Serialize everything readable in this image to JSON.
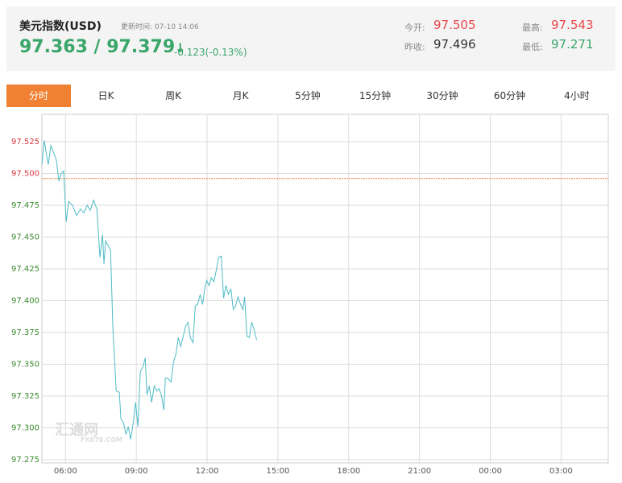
{
  "header": {
    "title": "美元指数(USD)",
    "update_time": "更新时间: 07-10 14:06",
    "price": "97.363 / 97.379",
    "arrow": "↓",
    "change": "-0.123(-0.13%)",
    "quotes": [
      {
        "label": "今开:",
        "value": "97.505",
        "color": "#e8474b"
      },
      {
        "label": "最高:",
        "value": "97.543",
        "color": "#e8474b"
      },
      {
        "label": "昨收:",
        "value": "97.496",
        "color": "#333333"
      },
      {
        "label": "最低:",
        "value": "97.271",
        "color": "#3aa66a"
      }
    ]
  },
  "tabs": [
    "分时",
    "日K",
    "周K",
    "月K",
    "5分钟",
    "15分钟",
    "30分钟",
    "60分钟",
    "4小时"
  ],
  "active_tab": 0,
  "watermark": {
    "name": "汇通网",
    "site": "FX678.COM"
  },
  "chart_data": {
    "type": "line",
    "x": [
      5.0,
      5.1,
      5.21,
      5.27,
      5.38,
      5.51,
      5.62,
      5.72,
      5.82,
      5.92,
      6.03,
      6.13,
      6.3,
      6.47,
      6.64,
      6.78,
      6.92,
      7.05,
      7.19,
      7.33,
      7.46,
      7.57,
      7.63,
      7.7,
      7.81,
      7.91,
      8.01,
      8.15,
      8.28,
      8.35,
      8.46,
      8.56,
      8.66,
      8.76,
      8.87,
      8.97,
      9.07,
      9.17,
      9.28,
      9.38,
      9.45,
      9.55,
      9.65,
      9.76,
      9.86,
      9.96,
      10.06,
      10.17,
      10.23,
      10.34,
      10.47,
      10.58,
      10.68,
      10.78,
      10.88,
      10.99,
      11.09,
      11.19,
      11.29,
      11.4,
      11.5,
      11.6,
      11.71,
      11.81,
      11.88,
      11.98,
      12.08,
      12.18,
      12.29,
      12.39,
      12.49,
      12.6,
      12.7,
      12.8,
      12.9,
      13.01,
      13.11,
      13.21,
      13.31,
      13.42,
      13.52,
      13.59,
      13.69,
      13.79,
      13.89,
      14.0,
      14.1
    ],
    "series": [
      {
        "name": "USD",
        "color": "#4fbcc6",
        "values": [
          97.507,
          97.526,
          97.513,
          97.507,
          97.522,
          97.516,
          97.51,
          97.494,
          97.5,
          97.502,
          97.462,
          97.478,
          97.475,
          97.467,
          97.472,
          97.469,
          97.475,
          97.471,
          97.479,
          97.472,
          97.434,
          97.452,
          97.429,
          97.447,
          97.443,
          97.44,
          97.377,
          97.329,
          97.328,
          97.307,
          97.304,
          97.295,
          97.301,
          97.291,
          97.304,
          97.32,
          97.301,
          97.344,
          97.348,
          97.355,
          97.326,
          97.333,
          97.32,
          97.333,
          97.329,
          97.331,
          97.326,
          97.314,
          97.339,
          97.339,
          97.336,
          97.352,
          97.358,
          97.371,
          97.364,
          97.372,
          97.38,
          97.383,
          97.371,
          97.367,
          97.396,
          97.397,
          97.405,
          97.397,
          97.407,
          97.416,
          97.412,
          97.418,
          97.415,
          97.424,
          97.434,
          97.435,
          97.402,
          97.412,
          97.405,
          97.409,
          97.393,
          97.396,
          97.403,
          97.397,
          97.393,
          97.403,
          97.372,
          97.371,
          97.383,
          97.377,
          97.369
        ]
      }
    ],
    "xlim": [
      5,
      29
    ],
    "xticks": [
      {
        "value": 6,
        "label": "06:00"
      },
      {
        "value": 9,
        "label": "09:00"
      },
      {
        "value": 12,
        "label": "12:00"
      },
      {
        "value": 15,
        "label": "15:00"
      },
      {
        "value": 18,
        "label": "18:00"
      },
      {
        "value": 21,
        "label": "21:00"
      },
      {
        "value": 24,
        "label": "00:00"
      },
      {
        "value": 27,
        "label": "03:00"
      }
    ],
    "ylim": [
      97.2725,
      97.5465
    ],
    "yticks": [
      {
        "value": 97.275,
        "label": "97.275"
      },
      {
        "value": 97.3,
        "label": "97.300"
      },
      {
        "value": 97.325,
        "label": "97.325"
      },
      {
        "value": 97.35,
        "label": "97.350"
      },
      {
        "value": 97.375,
        "label": "97.375"
      },
      {
        "value": 97.4,
        "label": "97.400"
      },
      {
        "value": 97.425,
        "label": "97.425"
      },
      {
        "value": 97.45,
        "label": "97.450"
      },
      {
        "value": 97.475,
        "label": "97.475"
      },
      {
        "value": 97.5,
        "label": "97.500"
      },
      {
        "value": 97.525,
        "label": "97.525"
      }
    ],
    "reference_line": 97.496,
    "reference_color": "#f07a3a",
    "up_color": "#d9383c",
    "down_color": "#3a8a2e",
    "grid": true
  }
}
